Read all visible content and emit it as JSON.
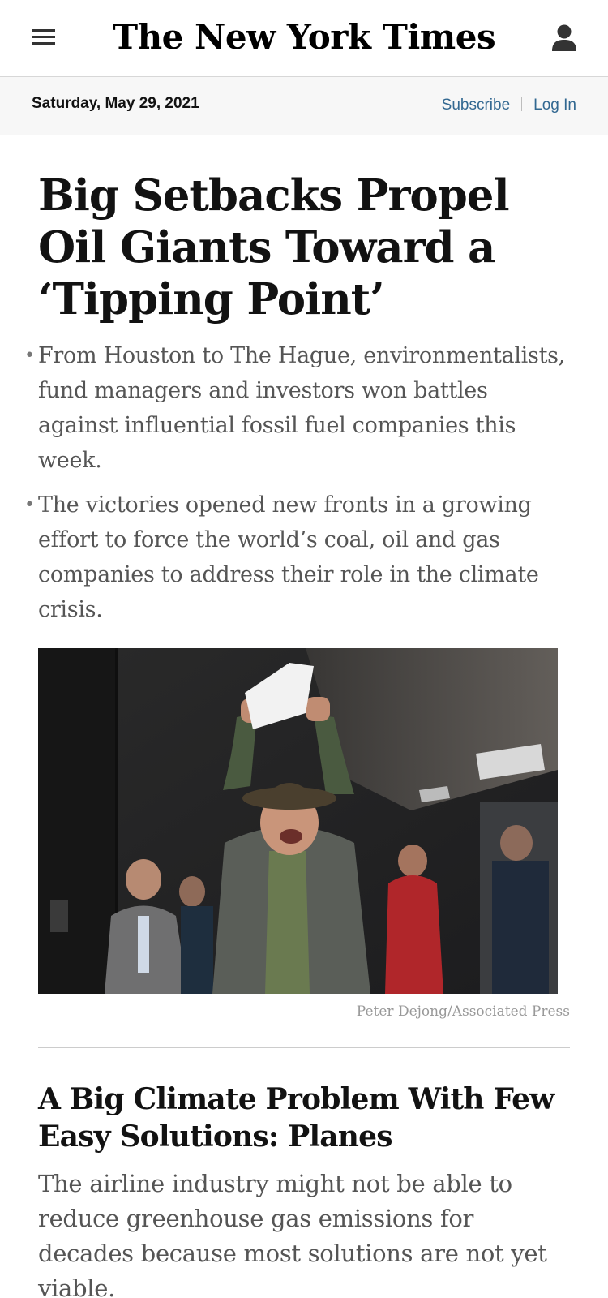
{
  "header": {
    "logo_text": "The New York Times",
    "menu_icon": "hamburger-menu-icon",
    "user_icon": "user-account-icon"
  },
  "datebar": {
    "date": "Saturday, May 29, 2021",
    "subscribe_label": "Subscribe",
    "login_label": "Log In"
  },
  "lead_story": {
    "headline": "Big Setbacks Propel Oil Giants Toward a ‘Tipping Point’",
    "summary": [
      "From Houston to The Hague, environmentalists, fund managers and investors won battles against influential fossil fuel companies this week.",
      "The victories opened new fronts in a growing effort to force the world’s coal, oil and gas companies to address their role in the climate crisis."
    ],
    "photo_credit": "Peter Dejong/Associated Press"
  },
  "second_story": {
    "headline": "A Big Climate Problem With Few Easy Solutions: Planes",
    "summary": "The airline industry might not be able to reduce greenhouse gas emissions for decades because most solutions are not yet viable."
  },
  "colors": {
    "link": "#326891",
    "datebar_bg": "#f7f7f7",
    "text": "#121212",
    "summary_text": "#555555"
  }
}
